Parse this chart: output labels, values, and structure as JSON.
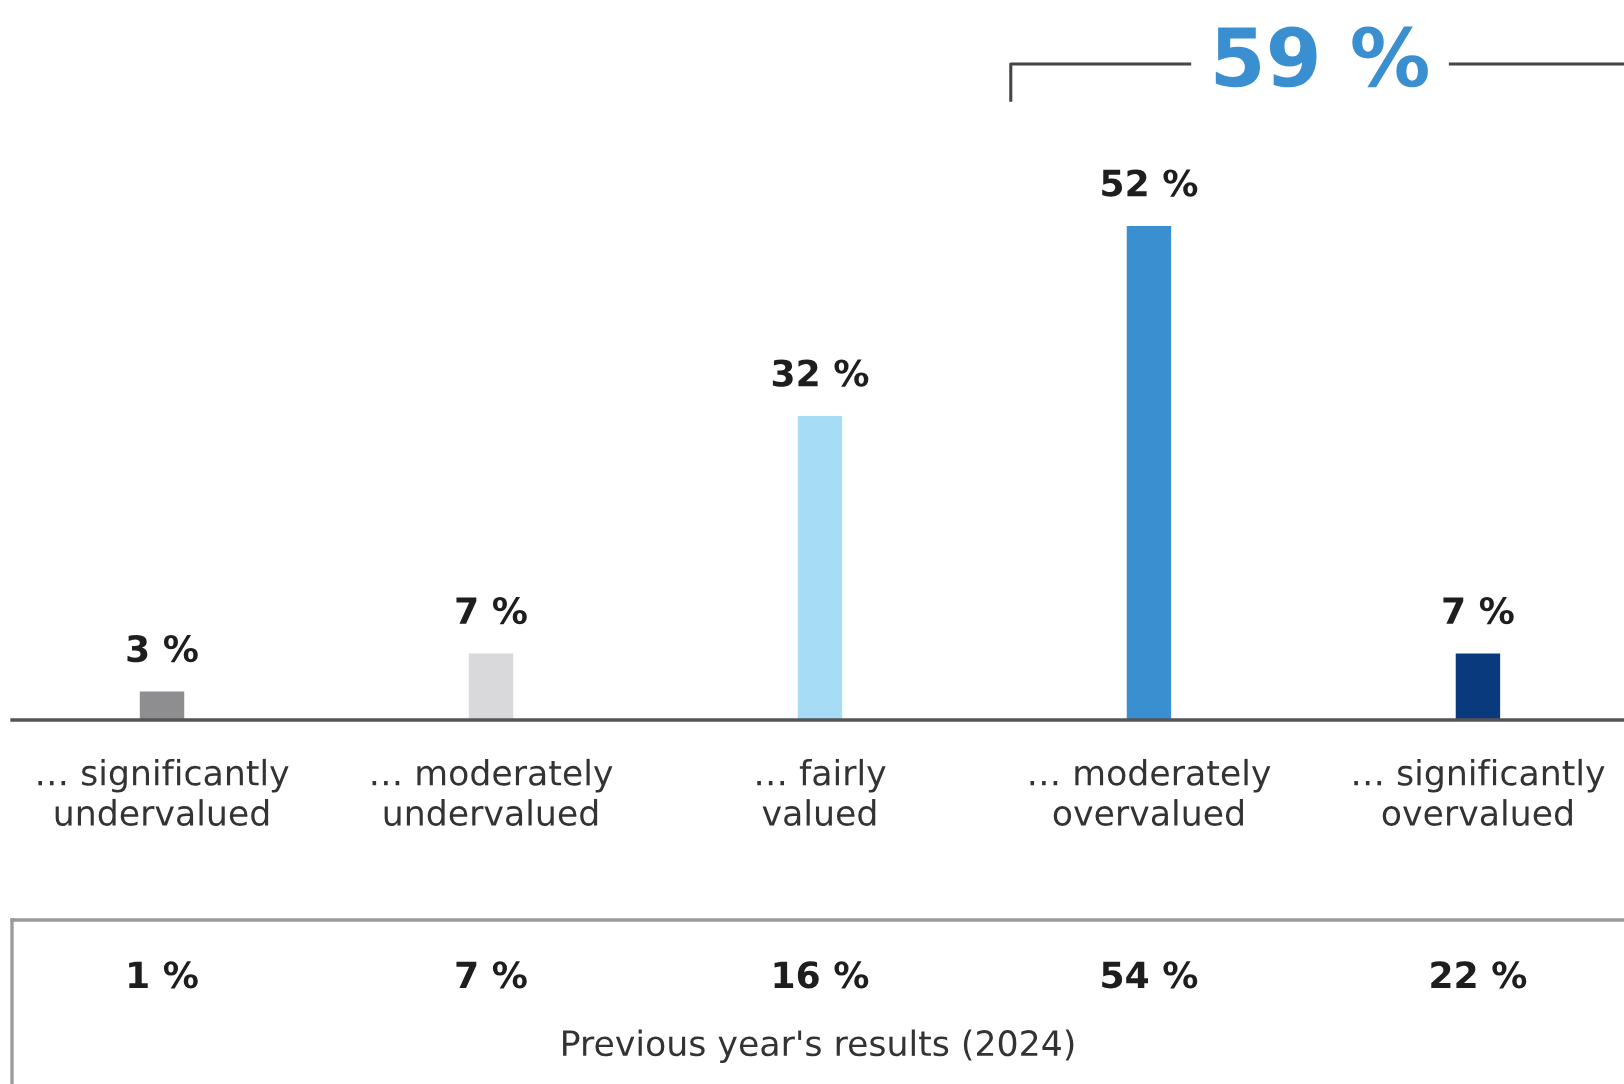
{
  "chart_data": [
    {
      "type": "bar",
      "categories": [
        "… significantly\nundervalued",
        "… moderately\nundervalued",
        "… fairly\nvalued",
        "… moderately\novervalued",
        "… significantly\novervalued"
      ],
      "values": [
        3,
        7,
        32,
        52,
        7
      ],
      "colors": [
        "#8e8e91",
        "#d9d9db",
        "#a6dcf6",
        "#3a8fd0",
        "#0a3a7e"
      ],
      "value_labels": [
        "3 %",
        "7 %",
        "32 %",
        "52 %",
        "7 %"
      ],
      "annotations": [
        "59 %"
      ]
    },
    {
      "type": "other",
      "categories": [
        null,
        null,
        null,
        null,
        null
      ],
      "values": [
        1,
        7,
        16,
        54,
        22
      ],
      "value_labels": [
        "1 %",
        "7 %",
        "16 %",
        "54 %",
        "22 %"
      ],
      "xlabel": "Previous year's results (2024)"
    }
  ]
}
